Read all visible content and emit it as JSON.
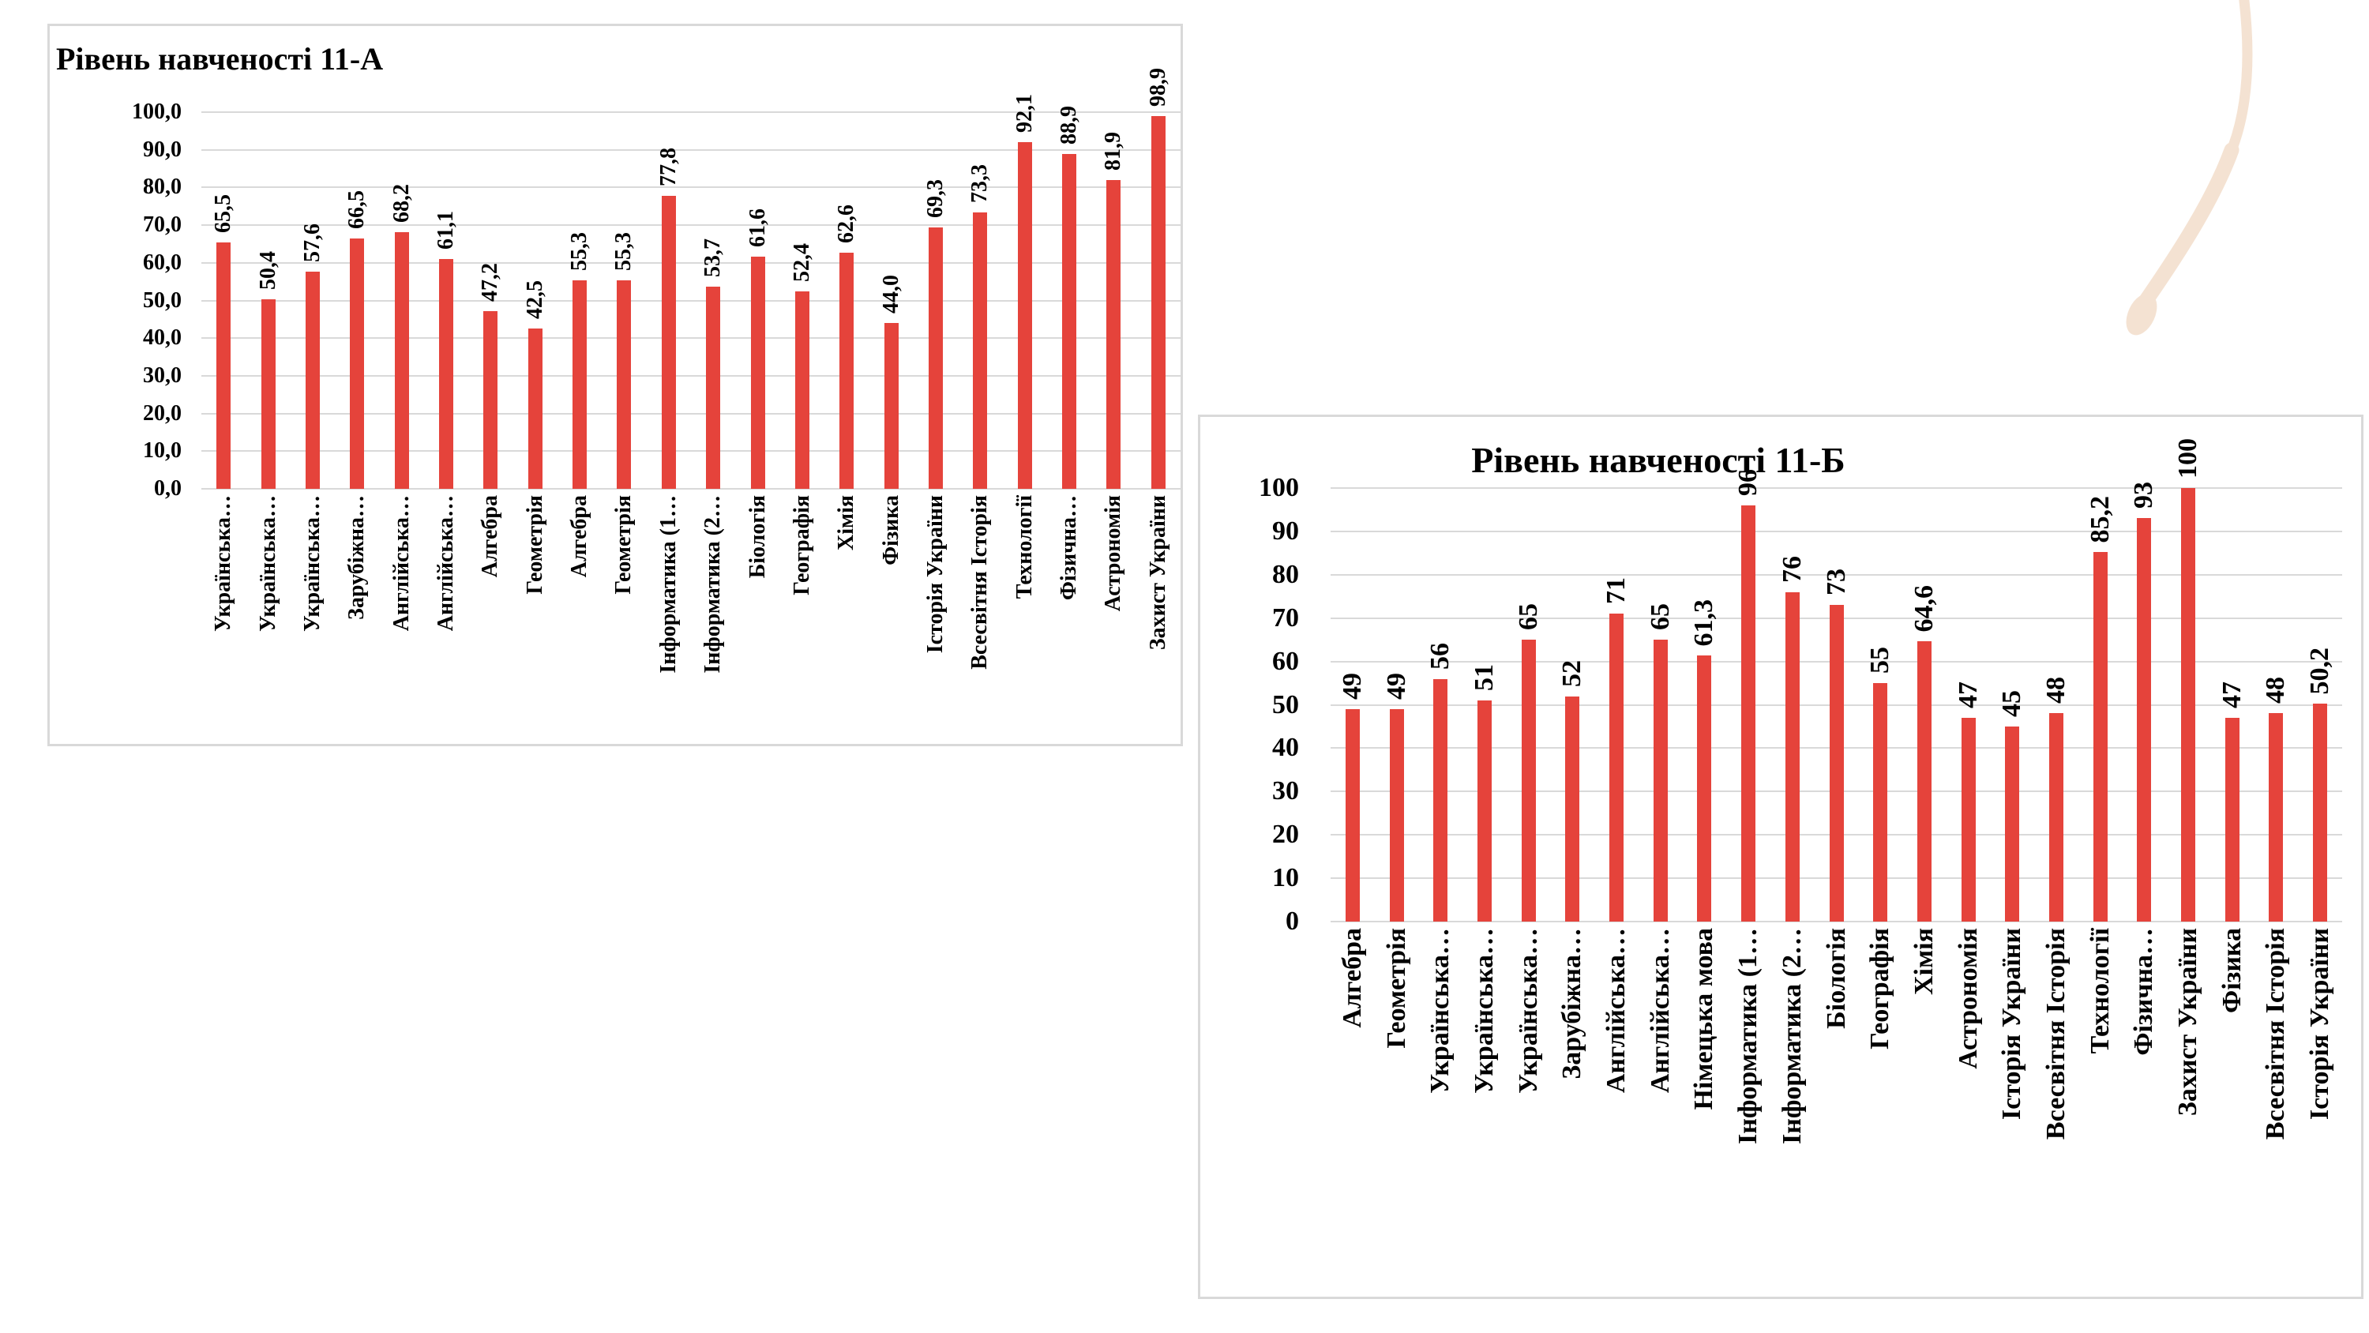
{
  "page": {
    "background": "#ffffff"
  },
  "decoration": {
    "name": "beige-swoosh",
    "color": "#f4e2d2"
  },
  "chart_data": [
    {
      "type": "bar",
      "title": "Рівень навченості 11-А",
      "categories": [
        "Українська…",
        "Українська…",
        "Українська…",
        "Зарубіжна…",
        "Англійська…",
        "Англійська…",
        "Алгебра",
        "Геометрія",
        "Алгебра",
        "Геометрія",
        "Інформатика (1…",
        "Інформатика (2…",
        "Біологія",
        "Географія",
        "Хімія",
        "Фізика",
        "Історія України",
        "Всесвітня Історія",
        "Технології",
        "Фізична…",
        "Астрономія",
        "Захист України"
      ],
      "values": [
        65.5,
        50.4,
        57.6,
        66.5,
        68.2,
        61.1,
        47.2,
        42.5,
        55.3,
        55.3,
        77.8,
        53.7,
        61.6,
        52.4,
        62.6,
        44.0,
        69.3,
        73.3,
        92.1,
        88.9,
        81.9,
        98.9
      ],
      "value_labels": [
        "65,5",
        "50,4",
        "57,6",
        "66,5",
        "68,2",
        "61,1",
        "47,2",
        "42,5",
        "55,3",
        "55,3",
        "77,8",
        "53,7",
        "61,6",
        "52,4",
        "62,6",
        "44,0",
        "69,3",
        "73,3",
        "92,1",
        "88,9",
        "81,9",
        "98,9"
      ],
      "y_ticks": [
        "100,0",
        "90,0",
        "80,0",
        "70,0",
        "60,0",
        "50,0",
        "40,0",
        "30,0",
        "20,0",
        "10,0",
        "0,0"
      ],
      "ylim": [
        0,
        100
      ],
      "xlabel": "",
      "ylabel": "",
      "grid": "horizontal",
      "legend": "none",
      "bar_color": "#e5433b",
      "grid_color": "#d9d9d9"
    },
    {
      "type": "bar",
      "title": "Рівень навченості 11-Б",
      "categories": [
        "Алгебра",
        "Геометрія",
        "Українська…",
        "Українська…",
        "Українська…",
        "Зарубіжна…",
        "Англійська…",
        "Англійська…",
        "Німецька мова",
        "Інформатика (1…",
        "Інформатика (2…",
        "Біологія",
        "Географія",
        "Хімія",
        "Астрономія",
        "Історія України",
        "Всесвітня Історія",
        "Технології",
        "Фізична…",
        "Захист України",
        "Фізика",
        "Всесвітня Історія",
        "Історія України"
      ],
      "values": [
        49,
        49,
        56,
        51,
        65,
        52,
        71,
        65,
        61.3,
        96,
        76,
        73,
        55,
        64.6,
        47,
        45,
        48,
        85.2,
        93,
        100,
        47,
        48,
        50.2
      ],
      "value_labels": [
        "49",
        "49",
        "56",
        "51",
        "65",
        "52",
        "71",
        "65",
        "61,3",
        "96",
        "76",
        "73",
        "55",
        "64,6",
        "47",
        "45",
        "48",
        "85,2",
        "93",
        "100",
        "47",
        "48",
        "50,2"
      ],
      "y_ticks": [
        "100",
        "90",
        "80",
        "70",
        "60",
        "50",
        "40",
        "30",
        "20",
        "10",
        "0"
      ],
      "ylim": [
        0,
        100
      ],
      "xlabel": "",
      "ylabel": "",
      "grid": "horizontal",
      "legend": "none",
      "bar_color": "#e5433b",
      "grid_color": "#d9d9d9"
    }
  ]
}
